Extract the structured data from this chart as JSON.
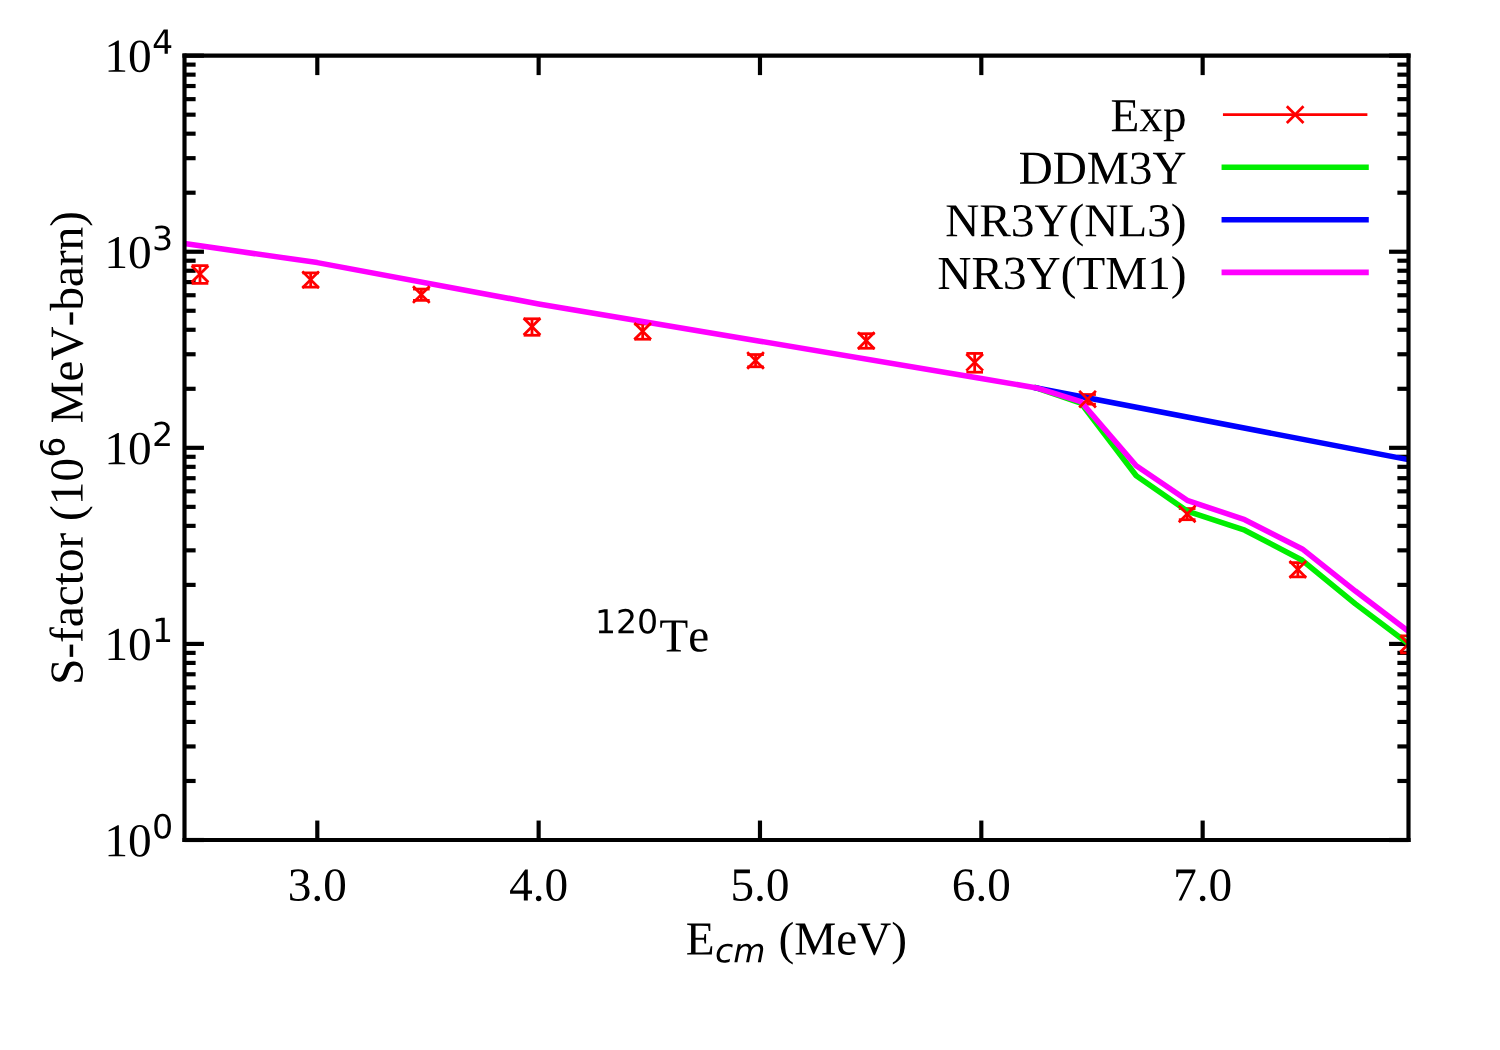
{
  "chart_data": {
    "type": "line",
    "xlabel": "E$_{cm}$ (MeV)",
    "ylabel": "S-factor (10$^{6}$ MeV-barn)",
    "log": "y",
    "xlim": [
      2.4,
      7.93
    ],
    "xticks": [
      {
        "value": 3,
        "label": "3.0"
      },
      {
        "value": 4,
        "label": "4.0"
      },
      {
        "value": 5,
        "label": "5.0"
      },
      {
        "value": 6,
        "label": "6.0"
      },
      {
        "value": 7,
        "label": "7.0"
      }
    ],
    "ylim": [
      1,
      10000
    ],
    "yticks": [
      {
        "value": 1,
        "label": "10$^{0}$"
      },
      {
        "value": 10,
        "label": "10$^{1}$"
      },
      {
        "value": 100,
        "label": "10$^{2}$"
      },
      {
        "value": 1000,
        "label": "10$^{3}$"
      },
      {
        "value": 10000,
        "label": "10$^{4}$"
      }
    ],
    "annotations": [
      "$^{120}$Te"
    ],
    "legend": "top right",
    "series": [
      {
        "name": "Exp",
        "type": "scatter",
        "marker": "cross",
        "color": "#ff0000",
        "x": [
          2.47,
          2.97,
          3.47,
          3.97,
          4.47,
          4.98,
          5.48,
          5.97,
          6.48,
          6.93,
          7.43,
          7.93
        ],
        "values": [
          770,
          720,
          605,
          415,
          393,
          279,
          352,
          273,
          177,
          46,
          24,
          10
        ],
        "errors": [
          80,
          60,
          40,
          40,
          35,
          20,
          30,
          30,
          10,
          3,
          2,
          1
        ]
      },
      {
        "name": "DDM3Y",
        "color": "#00ee00",
        "x": [
          6.25,
          6.45,
          6.7,
          6.93,
          7.19,
          7.45,
          7.69,
          7.93
        ],
        "values": [
          202,
          169,
          72,
          47.6,
          38,
          26.7,
          16,
          10
        ]
      },
      {
        "name": "NR3Y(NL3)",
        "color": "#0000ff",
        "x": [
          6.25,
          7.93
        ],
        "values": [
          202,
          87
        ]
      },
      {
        "name": "NR3Y(TM1)",
        "color": "#ff00ff",
        "x": [
          2.4,
          3.0,
          4.0,
          5.0,
          6.0,
          6.25,
          6.45,
          6.7,
          6.93,
          7.19,
          7.45,
          7.69,
          7.93
        ],
        "values": [
          1100,
          880,
          542,
          350,
          226,
          202,
          172,
          81,
          54,
          43,
          30.5,
          18.6,
          11.6
        ]
      }
    ]
  }
}
